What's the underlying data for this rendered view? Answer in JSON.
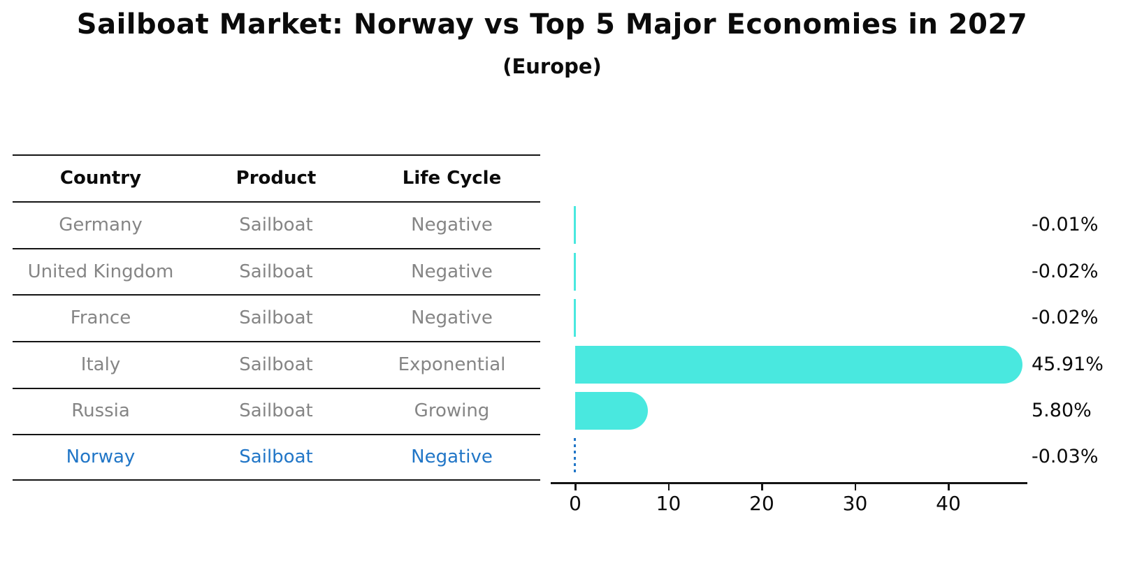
{
  "title": "Sailboat Market: Norway vs Top 5 Major Economies in 2027",
  "subtitle": "(Europe)",
  "colors": {
    "bar": "#49e8df",
    "highlight_blue": "#2176c7",
    "row_text_gray": "#858585",
    "axis_black": "#141414"
  },
  "table": {
    "headers": {
      "country": "Country",
      "product": "Product",
      "life_cycle": "Life Cycle"
    },
    "rows": [
      {
        "country": "Germany",
        "product": "Sailboat",
        "life_cycle": "Negative",
        "highlight": false
      },
      {
        "country": "United Kingdom",
        "product": "Sailboat",
        "life_cycle": "Negative",
        "highlight": false
      },
      {
        "country": "France",
        "product": "Sailboat",
        "life_cycle": "Negative",
        "highlight": false
      },
      {
        "country": "Italy",
        "product": "Sailboat",
        "life_cycle": "Exponential",
        "highlight": false
      },
      {
        "country": "Russia",
        "product": "Sailboat",
        "life_cycle": "Growing",
        "highlight": false
      },
      {
        "country": "Norway",
        "product": "Sailboat",
        "life_cycle": "Negative",
        "highlight": true
      }
    ]
  },
  "chart_data": {
    "type": "bar",
    "orientation": "horizontal",
    "title": "Sailboat Market: Norway vs Top 5 Major Economies in 2027 (Europe)",
    "categories": [
      "Germany",
      "United Kingdom",
      "France",
      "Italy",
      "Russia",
      "Norway"
    ],
    "values": [
      -0.01,
      -0.02,
      -0.02,
      45.91,
      5.8,
      -0.03
    ],
    "value_labels": [
      "-0.01%",
      "-0.02%",
      "-0.02%",
      "45.91%",
      "5.80%",
      "-0.03%"
    ],
    "x_ticks": [
      0,
      10,
      20,
      30,
      40
    ],
    "xlim": [
      -2.6,
      48.6
    ],
    "grid": false,
    "legend": false,
    "highlight_category": "Norway",
    "highlight_style": "blue-dotted-line",
    "bar_color": "#49e8df"
  }
}
